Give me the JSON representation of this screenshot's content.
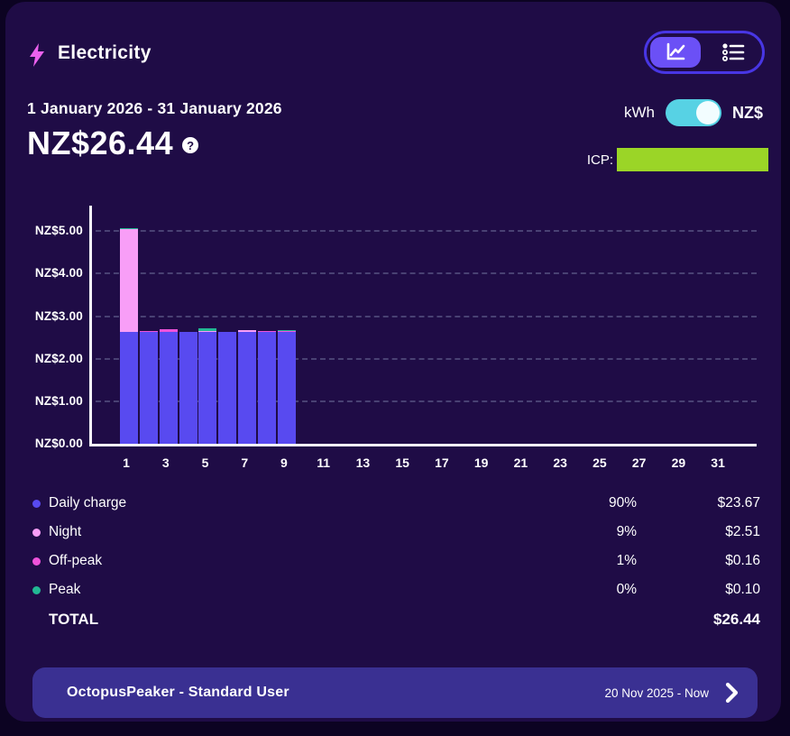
{
  "colors": {
    "page_bg": "#0c0322",
    "card_bg": "#1f0c46",
    "accent_purple": "#6b50f6",
    "toggle_cyan": "#57d2e4",
    "icp_green": "#9bd527",
    "tariff_card_bg": "#3a3092",
    "gridline": "#494173",
    "bar_daily": "#584af0",
    "bar_night": "#f89ef7",
    "bar_offpeak": "#ee52da",
    "bar_peak": "#22b893",
    "bolt_pink": "#ec61ee"
  },
  "icons": {
    "bolt": "lightning-bolt",
    "help": "?",
    "chart_view": "line-chart",
    "list_view": "bulleted-list",
    "chevron": "chevron-right"
  },
  "header": {
    "title": "Electricity"
  },
  "period": {
    "date_range": "1 January 2026 - 31 January 2026",
    "total_display": "NZ$26.44"
  },
  "unit_toggle": {
    "left_label": "kWh",
    "right_label": "NZ$",
    "selected": "NZ$"
  },
  "icp": {
    "label": "ICP:"
  },
  "chart_data": {
    "type": "bar",
    "stacked": true,
    "title": "",
    "xlabel": "",
    "ylabel": "NZ$",
    "ylim": [
      0,
      5.6
    ],
    "grid": "dashed-horizontal",
    "y_ticks": [
      {
        "value": 0,
        "label": "NZ$0.00"
      },
      {
        "value": 1,
        "label": "NZ$1.00"
      },
      {
        "value": 2,
        "label": "NZ$2.00"
      },
      {
        "value": 3,
        "label": "NZ$3.00"
      },
      {
        "value": 4,
        "label": "NZ$4.00"
      },
      {
        "value": 5,
        "label": "NZ$5.00"
      }
    ],
    "x_tick_labels": [
      "1",
      "3",
      "5",
      "7",
      "9",
      "11",
      "13",
      "15",
      "17",
      "19",
      "21",
      "23",
      "25",
      "27",
      "29",
      "31"
    ],
    "categories": [
      1,
      2,
      3,
      4,
      5,
      6,
      7,
      8,
      9,
      10,
      11,
      12,
      13,
      14,
      15,
      16,
      17,
      18,
      19,
      20,
      21,
      22,
      23,
      24,
      25,
      26,
      27,
      28,
      29,
      30,
      31
    ],
    "series": [
      {
        "name": "Daily charge",
        "color": "#584af0",
        "values": [
          2.63,
          2.63,
          2.63,
          2.63,
          2.63,
          2.63,
          2.63,
          2.63,
          2.63,
          0,
          0,
          0,
          0,
          0,
          0,
          0,
          0,
          0,
          0,
          0,
          0,
          0,
          0,
          0,
          0,
          0,
          0,
          0,
          0,
          0,
          0
        ]
      },
      {
        "name": "Night",
        "color": "#f89ef7",
        "values": [
          2.41,
          0,
          0,
          0.01,
          0.03,
          0.01,
          0.05,
          0,
          0,
          0,
          0,
          0,
          0,
          0,
          0,
          0,
          0,
          0,
          0,
          0,
          0,
          0,
          0,
          0,
          0,
          0,
          0,
          0,
          0,
          0,
          0
        ]
      },
      {
        "name": "Off-peak",
        "color": "#ee52da",
        "values": [
          0,
          0.03,
          0.07,
          0,
          0,
          0,
          0,
          0.03,
          0.03,
          0,
          0,
          0,
          0,
          0,
          0,
          0,
          0,
          0,
          0,
          0,
          0,
          0,
          0,
          0,
          0,
          0,
          0,
          0,
          0,
          0,
          0
        ]
      },
      {
        "name": "Peak",
        "color": "#22b893",
        "values": [
          0.02,
          0,
          0,
          0,
          0.06,
          0,
          0,
          0,
          0.02,
          0,
          0,
          0,
          0,
          0,
          0,
          0,
          0,
          0,
          0,
          0,
          0,
          0,
          0,
          0,
          0,
          0,
          0,
          0,
          0,
          0,
          0
        ]
      }
    ]
  },
  "legend": {
    "rows": [
      {
        "name": "Daily charge",
        "color": "#584af0",
        "percent": "90%",
        "amount": "$23.67"
      },
      {
        "name": "Night",
        "color": "#f89ef7",
        "percent": "9%",
        "amount": "$2.51"
      },
      {
        "name": "Off-peak",
        "color": "#ee52da",
        "percent": "1%",
        "amount": "$0.16"
      },
      {
        "name": "Peak",
        "color": "#22b893",
        "percent": "0%",
        "amount": "$0.10"
      }
    ],
    "total_label": "TOTAL",
    "total_amount": "$26.44"
  },
  "tariff_card": {
    "name": "OctopusPeaker - Standard User",
    "period": "20 Nov 2025 - Now"
  }
}
